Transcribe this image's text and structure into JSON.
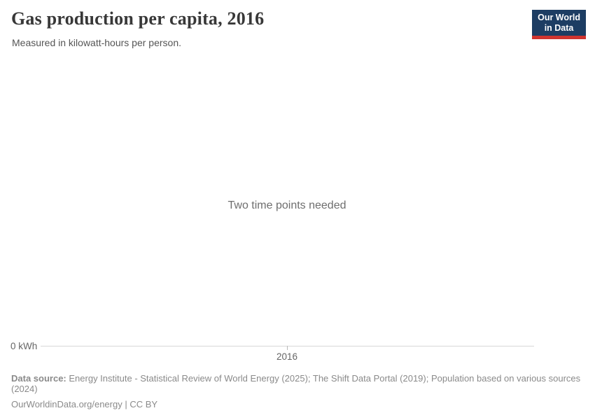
{
  "header": {
    "title": "Gas production per capita, 2016",
    "subtitle": "Measured in kilowatt-hours per person."
  },
  "logo": {
    "line1": "Our World",
    "line2": "in Data"
  },
  "chart": {
    "message": "Two time points needed",
    "y_axis_zero_label": "0 kWh",
    "x_tick_label": "2016"
  },
  "footer": {
    "data_source_label": "Data source:",
    "data_source_text": "Energy Institute - Statistical Review of World Energy (2025); The Shift Data Portal (2019); Population based on various sources (2024)",
    "attribution": "OurWorldinData.org/energy | CC BY"
  },
  "colors": {
    "logo_background": "#1d3d63",
    "logo_accent_red": "#d0342f",
    "title_text": "#383838",
    "subtitle_text": "#555555",
    "message_text": "#6e6e6e",
    "axis_text": "#666666",
    "axis_line": "#d7d7d7",
    "footer_text": "#8a8a8a",
    "background": "#ffffff"
  },
  "chart_data": {
    "type": "line",
    "title": "Gas production per capita, 2016",
    "subtitle": "Measured in kilowatt-hours per person.",
    "unit": "kilowatt-hours per person",
    "x": [
      2016
    ],
    "x_axis_ticks": [
      "2016"
    ],
    "y_axis_ticks": [
      "0 kWh"
    ],
    "series": [],
    "annotations": [
      "Two time points needed"
    ],
    "legend_position": "none",
    "grid": false
  }
}
